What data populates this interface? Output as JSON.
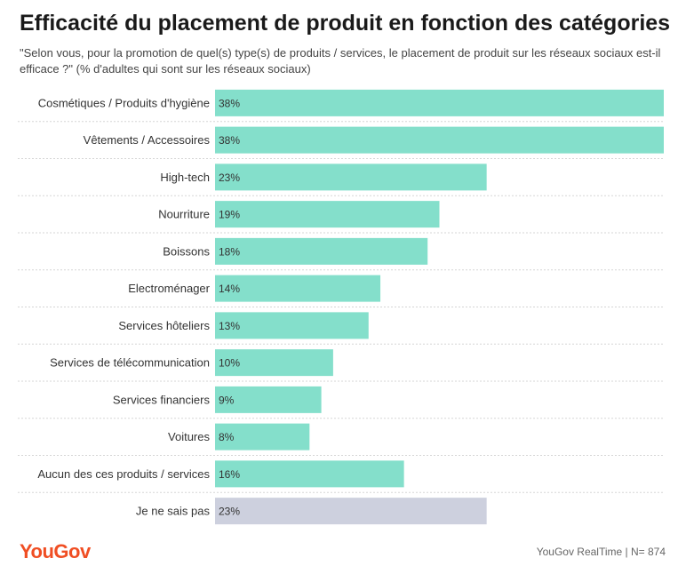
{
  "title": "Efficacité du placement de produit en fonction des catégories",
  "subtitle": "\"Selon vous, pour la promotion de quel(s) type(s) de produits / services, le placement de produit sur les réseaux sociaux est-il efficace ?\" (% d'adultes qui sont sur les réseaux sociaux)",
  "footer": {
    "logo": "YouGov",
    "source": "YouGov RealTime | N= 874"
  },
  "colors": {
    "bar": "#84dfcb",
    "bar_neutral": "#cdd0de",
    "separator": "#d5d5d5",
    "logo": "#f04e23"
  },
  "chart_data": {
    "type": "bar",
    "orientation": "horizontal",
    "categories": [
      "Cosmétiques / Produits d'hygiène",
      "Vêtements / Accessoires",
      "High-tech",
      "Nourriture",
      "Boissons",
      "Electroménager",
      "Services hôteliers",
      "Services de télécommunication",
      "Services financiers",
      "Voitures",
      "Aucun des ces produits / services",
      "Je ne sais pas"
    ],
    "values": [
      38,
      38,
      23,
      19,
      18,
      14,
      13,
      10,
      9,
      8,
      16,
      23
    ],
    "value_labels": [
      "38%",
      "38%",
      "23%",
      "19%",
      "18%",
      "14%",
      "13%",
      "10%",
      "9%",
      "8%",
      "16%",
      "23%"
    ],
    "bar_colors": [
      "#84dfcb",
      "#84dfcb",
      "#84dfcb",
      "#84dfcb",
      "#84dfcb",
      "#84dfcb",
      "#84dfcb",
      "#84dfcb",
      "#84dfcb",
      "#84dfcb",
      "#84dfcb",
      "#cdd0de"
    ],
    "unit": "%",
    "xlim": [
      0,
      38
    ],
    "grid": false,
    "legend": "none"
  }
}
